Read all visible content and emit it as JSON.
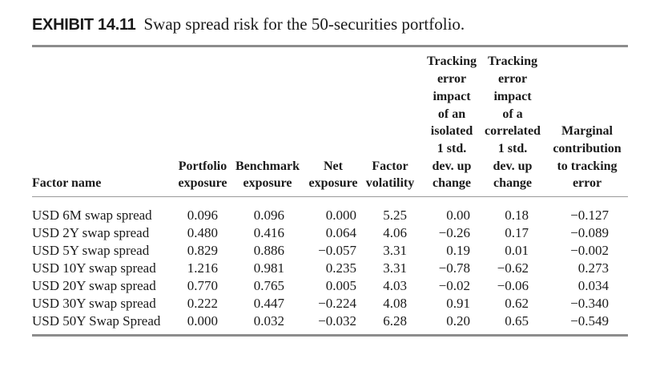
{
  "exhibit": {
    "label": "EXHIBIT 14.11",
    "title": "Swap spread risk for the 50-securities portfolio."
  },
  "columns": [
    "Factor name",
    "Portfolio\nexposure",
    "Benchmark\nexposure",
    "Net\nexposure",
    "Factor\nvolatility",
    "Tracking\nerror\nimpact\nof an\nisolated\n1 std.\ndev. up\nchange",
    "Tracking\nerror\nimpact\nof a\ncorrelated\n1 std.\ndev. up\nchange",
    "Marginal\ncontribution\nto tracking\nerror"
  ],
  "rows": [
    [
      "USD 6M swap spread",
      "0.096",
      "0.096",
      "0.000",
      "5.25",
      "0.00",
      "0.18",
      "−0.127"
    ],
    [
      "USD 2Y swap spread",
      "0.480",
      "0.416",
      "0.064",
      "4.06",
      "−0.26",
      "0.17",
      "−0.089"
    ],
    [
      "USD 5Y swap spread",
      "0.829",
      "0.886",
      "−0.057",
      "3.31",
      "0.19",
      "0.01",
      "−0.002"
    ],
    [
      "USD 10Y swap spread",
      "1.216",
      "0.981",
      "0.235",
      "3.31",
      "−0.78",
      "−0.62",
      "0.273"
    ],
    [
      "USD 20Y swap spread",
      "0.770",
      "0.765",
      "0.005",
      "4.03",
      "−0.02",
      "−0.06",
      "0.034"
    ],
    [
      "USD 30Y swap spread",
      "0.222",
      "0.447",
      "−0.224",
      "4.08",
      "0.91",
      "0.62",
      "−0.340"
    ],
    [
      "USD 50Y Swap Spread",
      "0.000",
      "0.032",
      "−0.032",
      "6.28",
      "0.20",
      "0.65",
      "−0.549"
    ]
  ]
}
